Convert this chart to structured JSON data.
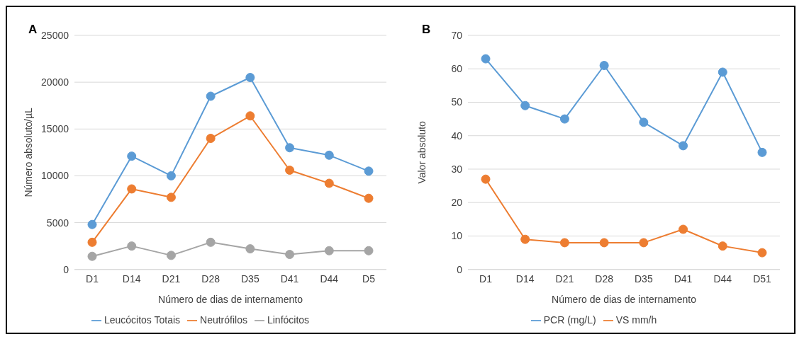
{
  "chart_data": [
    {
      "type": "line",
      "title": "A",
      "xlabel": "Número de dias de internamento",
      "ylabel": "Número absoluto/µL",
      "categories": [
        "D1",
        "D14",
        "D21",
        "D28",
        "D35",
        "D41",
        "D44",
        "D5"
      ],
      "ylim": [
        0,
        25000
      ],
      "yticks": [
        0,
        5000,
        10000,
        15000,
        20000,
        25000
      ],
      "grid": "y",
      "legend": "bottom",
      "marker": "circle",
      "series": [
        {
          "name": "Leucócitos Totais",
          "color": "#5b9bd5",
          "values": [
            4800,
            12100,
            10000,
            18500,
            20500,
            13000,
            12200,
            10500
          ]
        },
        {
          "name": "Neutrófilos",
          "color": "#ed7d31",
          "values": [
            2900,
            8600,
            7700,
            14000,
            16400,
            10600,
            9200,
            7600
          ]
        },
        {
          "name": "Linfócitos",
          "color": "#a5a5a5",
          "values": [
            1400,
            2500,
            1500,
            2900,
            2200,
            1600,
            2000,
            2000
          ]
        }
      ]
    },
    {
      "type": "line",
      "title": "B",
      "xlabel": "Número de dias de internamento",
      "ylabel": "Valor absoluto",
      "categories": [
        "D1",
        "D14",
        "D21",
        "D28",
        "D35",
        "D41",
        "D44",
        "D51"
      ],
      "ylim": [
        0,
        70
      ],
      "yticks": [
        0,
        10,
        20,
        30,
        40,
        50,
        60,
        70
      ],
      "grid": "y",
      "legend": "bottom",
      "marker": "circle",
      "series": [
        {
          "name": "PCR (mg/L)",
          "color": "#5b9bd5",
          "values": [
            63,
            49,
            45,
            61,
            44,
            37,
            59,
            35
          ]
        },
        {
          "name": "VS mm/h",
          "color": "#ed7d31",
          "values": [
            27,
            9,
            8,
            8,
            8,
            12,
            7,
            5
          ]
        }
      ]
    }
  ]
}
